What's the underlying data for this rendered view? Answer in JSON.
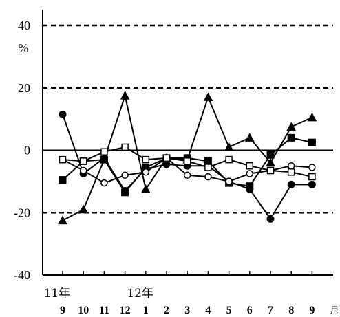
{
  "chart_data": {
    "type": "line",
    "title": "",
    "ylabel": "%",
    "xlabel": "月",
    "ylim": [
      -40,
      40
    ],
    "yticks": [
      40,
      20,
      0,
      -20,
      -40
    ],
    "grid": "dashed at ±20 and 40, solid at 0",
    "year_labels": [
      {
        "text": "11年",
        "at_index": 0
      },
      {
        "text": "12年",
        "at_index": 4
      }
    ],
    "categories": [
      "9",
      "10",
      "11",
      "12",
      "1",
      "2",
      "3",
      "4",
      "5",
      "6",
      "7",
      "8",
      "9"
    ],
    "series": [
      {
        "marker": "filled-triangle",
        "values": [
          -22.5,
          -19,
          -3,
          17.5,
          -12.5,
          -2.5,
          -3,
          17,
          1,
          4,
          -4,
          7.5,
          10.5
        ]
      },
      {
        "marker": "filled-circle",
        "values": [
          11.5,
          -7.5,
          -2.5,
          -13,
          -6,
          -4.5,
          -5,
          -5,
          -10,
          -12.5,
          -22,
          -11,
          -11
        ]
      },
      {
        "marker": "filled-square",
        "values": [
          -9.5,
          -3.5,
          -3,
          -13.5,
          -5.5,
          -2.5,
          -2.5,
          -3.5,
          -10.5,
          -11.5,
          -1.5,
          4,
          2.5
        ]
      },
      {
        "marker": "open-circle",
        "values": [
          -3,
          -6.5,
          -10.5,
          -8,
          -7,
          -2.5,
          -8,
          -8.5,
          -10,
          -7.5,
          -6.5,
          -5,
          -5.5
        ]
      },
      {
        "marker": "open-square",
        "values": [
          -3,
          -3.5,
          -0.5,
          1,
          -3,
          -2.5,
          -3.5,
          -5.5,
          -3,
          -5,
          -6.5,
          -7,
          -8.5
        ]
      }
    ]
  }
}
